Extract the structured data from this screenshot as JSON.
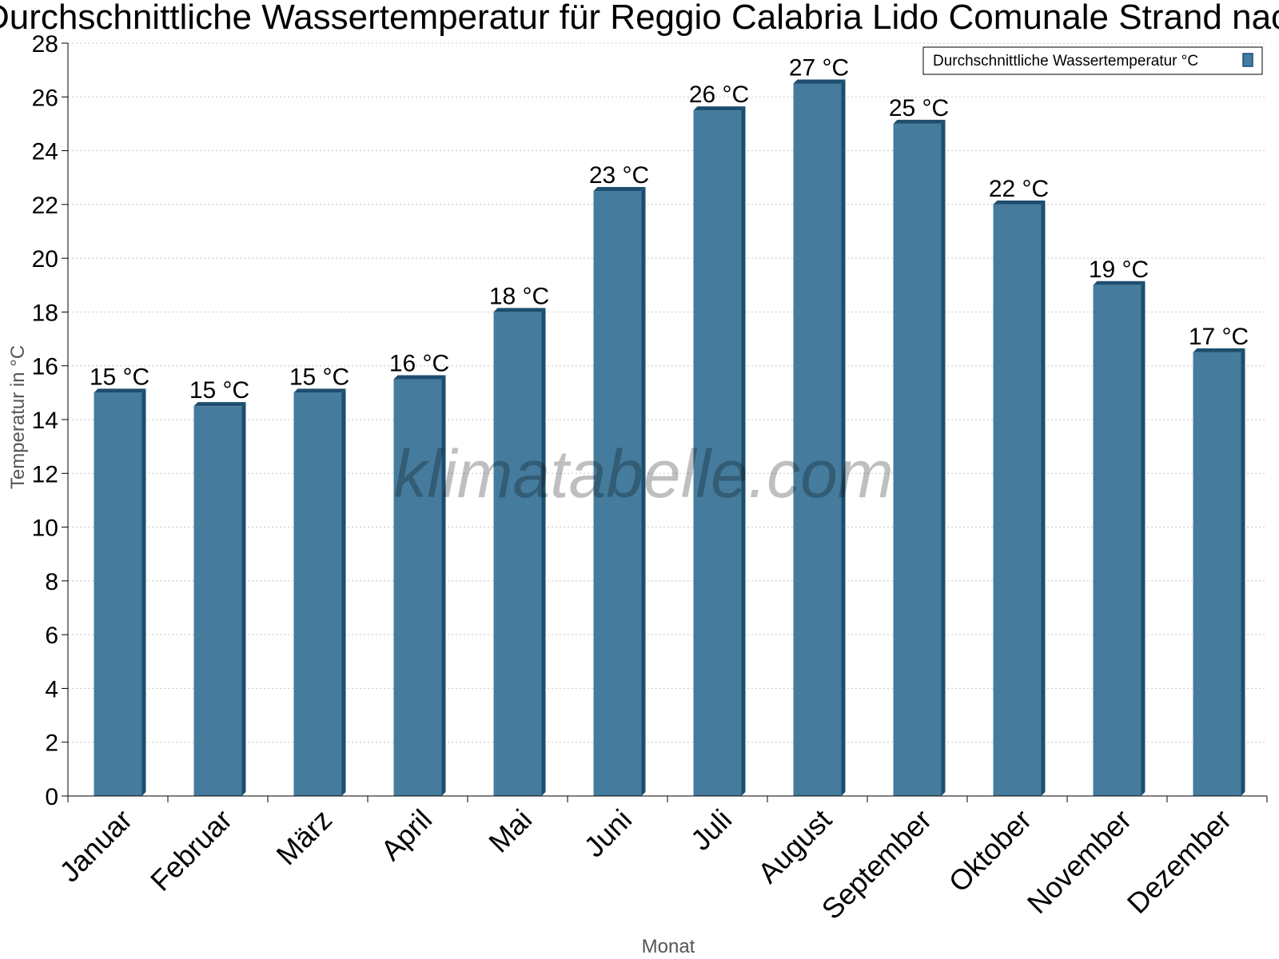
{
  "chart_data": {
    "type": "bar",
    "title": "Durchschnittliche Wassertemperatur für Reggio Calabria Lido Comunale Strand nach Monat",
    "xlabel": "Monat",
    "ylabel": "Temperatur in °C",
    "ylim": [
      0,
      28
    ],
    "ytick_step": 2,
    "grid": true,
    "legend_position": "top-right",
    "categories": [
      "Januar",
      "Februar",
      "März",
      "April",
      "Mai",
      "Juni",
      "Juli",
      "August",
      "September",
      "Oktober",
      "November",
      "Dezember"
    ],
    "series": [
      {
        "name": "Durchschnittliche Wassertemperatur °C",
        "values": [
          15,
          14.5,
          15,
          15.5,
          18,
          22.5,
          25.5,
          26.5,
          25,
          22,
          19,
          16.5
        ],
        "labels": [
          "15 °C",
          "15 °C",
          "15 °C",
          "16 °C",
          "18 °C",
          "23 °C",
          "26 °C",
          "27 °C",
          "25 °C",
          "22 °C",
          "19 °C",
          "17 °C"
        ],
        "color": "#457b9d",
        "edge_color": "#1d4e6e"
      }
    ],
    "watermark": "klimatabelle.com"
  }
}
